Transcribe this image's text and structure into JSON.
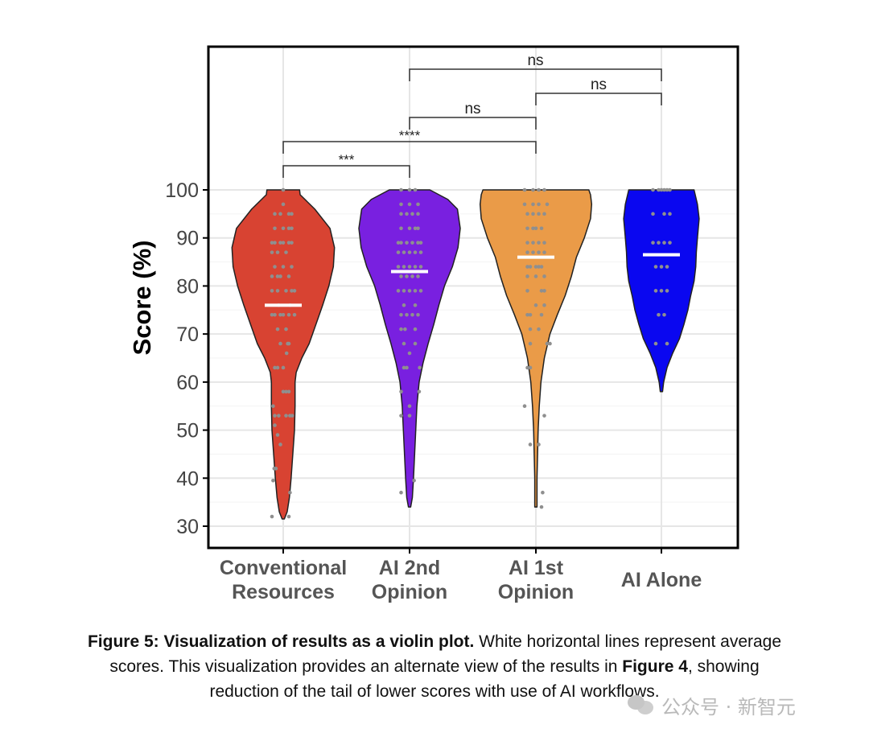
{
  "chart_data": {
    "type": "violin",
    "ylabel": "Score (%)",
    "ylim": [
      25.5,
      100
    ],
    "yticks": [
      30,
      40,
      50,
      60,
      70,
      80,
      90,
      100
    ],
    "grid": true,
    "categories": [
      {
        "line1": "Conventional",
        "line2": "Resources",
        "color": "#d84332"
      },
      {
        "line1": "AI 2nd",
        "line2": "Opinion",
        "color": "#7920e0"
      },
      {
        "line1": "AI 1st",
        "line2": "Opinion",
        "color": "#ea9b48"
      },
      {
        "line1": "AI Alone",
        "line2": "",
        "color": "#0a07f0"
      }
    ],
    "series": [
      {
        "mean": 76,
        "min": 31.5,
        "max": 100,
        "profile": [
          [
            31.5,
            0.02
          ],
          [
            33,
            0.07
          ],
          [
            36,
            0.11
          ],
          [
            40,
            0.14
          ],
          [
            45,
            0.17
          ],
          [
            50,
            0.2
          ],
          [
            55,
            0.21
          ],
          [
            60,
            0.21
          ],
          [
            62,
            0.23
          ],
          [
            65,
            0.33
          ],
          [
            68,
            0.46
          ],
          [
            72,
            0.58
          ],
          [
            76,
            0.7
          ],
          [
            80,
            0.81
          ],
          [
            84,
            0.89
          ],
          [
            88,
            0.91
          ],
          [
            92,
            0.83
          ],
          [
            96,
            0.56
          ],
          [
            99,
            0.3
          ],
          [
            100,
            0.29
          ]
        ],
        "points": [
          [
            32,
            -0.2
          ],
          [
            32,
            0.1
          ],
          [
            37,
            0.12
          ],
          [
            39.5,
            -0.18
          ],
          [
            42,
            -0.16
          ],
          [
            42,
            -0.13
          ],
          [
            47,
            -0.05
          ],
          [
            49,
            -0.1
          ],
          [
            51,
            -0.15
          ],
          [
            53,
            -0.15
          ],
          [
            53,
            -0.08
          ],
          [
            53,
            0.05
          ],
          [
            53,
            0.12
          ],
          [
            53,
            0.16
          ],
          [
            55,
            -0.18
          ],
          [
            58,
            0.0
          ],
          [
            58,
            0.05
          ],
          [
            58,
            0.1
          ],
          [
            63,
            -0.15
          ],
          [
            63,
            -0.1
          ],
          [
            63,
            0.0
          ],
          [
            66,
            0.06
          ],
          [
            68,
            -0.05
          ],
          [
            68,
            0.08
          ],
          [
            68,
            0.1
          ],
          [
            71,
            -0.1
          ],
          [
            71,
            0.05
          ],
          [
            74,
            -0.2
          ],
          [
            74,
            -0.15
          ],
          [
            74,
            -0.05
          ],
          [
            74,
            0.0
          ],
          [
            74,
            0.1
          ],
          [
            74,
            0.2
          ],
          [
            76,
            -0.08
          ],
          [
            76,
            0.12
          ],
          [
            79,
            -0.2
          ],
          [
            79,
            -0.1
          ],
          [
            79,
            0.05
          ],
          [
            79,
            0.15
          ],
          [
            79,
            0.2
          ],
          [
            82,
            -0.2
          ],
          [
            82,
            -0.1
          ],
          [
            82,
            -0.05
          ],
          [
            82,
            0.1
          ],
          [
            84,
            -0.15
          ],
          [
            84,
            0.0
          ],
          [
            84,
            0.15
          ],
          [
            87,
            -0.2
          ],
          [
            87,
            -0.1
          ],
          [
            87,
            0.05
          ],
          [
            89,
            -0.2
          ],
          [
            89,
            -0.15
          ],
          [
            89,
            -0.05
          ],
          [
            89,
            0.0
          ],
          [
            89,
            0.1
          ],
          [
            89,
            0.15
          ],
          [
            92,
            -0.15
          ],
          [
            92,
            0.0
          ],
          [
            92,
            0.1
          ],
          [
            92,
            0.15
          ],
          [
            95,
            -0.15
          ],
          [
            95,
            -0.05
          ],
          [
            95,
            0.1
          ],
          [
            95,
            0.15
          ],
          [
            97,
            0.0
          ],
          [
            100,
            0.0
          ]
        ]
      },
      {
        "mean": 83,
        "min": 34,
        "max": 100,
        "profile": [
          [
            34,
            0.02
          ],
          [
            36,
            0.05
          ],
          [
            40,
            0.07
          ],
          [
            45,
            0.09
          ],
          [
            50,
            0.11
          ],
          [
            55,
            0.13
          ],
          [
            60,
            0.17
          ],
          [
            64,
            0.24
          ],
          [
            68,
            0.33
          ],
          [
            72,
            0.43
          ],
          [
            76,
            0.52
          ],
          [
            80,
            0.62
          ],
          [
            84,
            0.76
          ],
          [
            88,
            0.86
          ],
          [
            92,
            0.9
          ],
          [
            96,
            0.85
          ],
          [
            98,
            0.68
          ],
          [
            100,
            0.36
          ]
        ],
        "points": [
          [
            37,
            -0.15
          ],
          [
            39.5,
            0.08
          ],
          [
            53,
            -0.15
          ],
          [
            53,
            0.0
          ],
          [
            55,
            0.0
          ],
          [
            58,
            -0.15
          ],
          [
            58,
            0.17
          ],
          [
            63,
            -0.1
          ],
          [
            63,
            -0.05
          ],
          [
            63,
            0.18
          ],
          [
            66,
            0.0
          ],
          [
            68,
            -0.1
          ],
          [
            68,
            0.1
          ],
          [
            71,
            -0.15
          ],
          [
            71,
            -0.08
          ],
          [
            71,
            0.1
          ],
          [
            74,
            -0.15
          ],
          [
            74,
            -0.05
          ],
          [
            74,
            0.05
          ],
          [
            74,
            0.15
          ],
          [
            76,
            -0.1
          ],
          [
            76,
            0.1
          ],
          [
            79,
            -0.2
          ],
          [
            79,
            -0.1
          ],
          [
            79,
            0.0
          ],
          [
            79,
            0.1
          ],
          [
            79,
            0.2
          ],
          [
            82,
            -0.15
          ],
          [
            82,
            -0.05
          ],
          [
            82,
            0.05
          ],
          [
            82,
            0.15
          ],
          [
            84,
            -0.2
          ],
          [
            84,
            -0.1
          ],
          [
            84,
            0.0
          ],
          [
            84,
            0.1
          ],
          [
            84,
            0.2
          ],
          [
            87,
            -0.2
          ],
          [
            87,
            -0.1
          ],
          [
            87,
            0.0
          ],
          [
            87,
            0.1
          ],
          [
            87,
            0.2
          ],
          [
            89,
            -0.2
          ],
          [
            89,
            -0.15
          ],
          [
            89,
            -0.05
          ],
          [
            89,
            0.05
          ],
          [
            89,
            0.15
          ],
          [
            89,
            0.2
          ],
          [
            92,
            -0.15
          ],
          [
            92,
            0.0
          ],
          [
            92,
            0.1
          ],
          [
            92,
            0.15
          ],
          [
            95,
            -0.15
          ],
          [
            95,
            -0.05
          ],
          [
            95,
            0.05
          ],
          [
            95,
            0.15
          ],
          [
            97,
            -0.15
          ],
          [
            97,
            0.0
          ],
          [
            97,
            0.15
          ],
          [
            100,
            -0.15
          ],
          [
            100,
            0.0
          ],
          [
            100,
            0.1
          ]
        ]
      },
      {
        "mean": 86,
        "min": 34,
        "max": 100,
        "profile": [
          [
            34,
            0.02
          ],
          [
            36,
            0.02
          ],
          [
            40,
            0.02
          ],
          [
            45,
            0.03
          ],
          [
            50,
            0.04
          ],
          [
            55,
            0.06
          ],
          [
            60,
            0.09
          ],
          [
            65,
            0.15
          ],
          [
            70,
            0.25
          ],
          [
            74,
            0.38
          ],
          [
            78,
            0.52
          ],
          [
            82,
            0.63
          ],
          [
            86,
            0.72
          ],
          [
            90,
            0.86
          ],
          [
            94,
            0.97
          ],
          [
            97,
            0.99
          ],
          [
            99,
            0.97
          ],
          [
            100,
            0.94
          ]
        ],
        "points": [
          [
            34,
            0.1
          ],
          [
            37,
            0.12
          ],
          [
            47,
            -0.1
          ],
          [
            47,
            0.05
          ],
          [
            53,
            0.15
          ],
          [
            55,
            -0.2
          ],
          [
            63,
            -0.15
          ],
          [
            63,
            -0.1
          ],
          [
            68,
            -0.1
          ],
          [
            68,
            0.2
          ],
          [
            68,
            0.25
          ],
          [
            71,
            -0.1
          ],
          [
            71,
            0.05
          ],
          [
            74,
            -0.15
          ],
          [
            74,
            -0.1
          ],
          [
            74,
            0.1
          ],
          [
            76,
            0.0
          ],
          [
            76,
            0.15
          ],
          [
            79,
            -0.15
          ],
          [
            79,
            0.1
          ],
          [
            79,
            0.15
          ],
          [
            82,
            -0.15
          ],
          [
            82,
            0.0
          ],
          [
            82,
            0.15
          ],
          [
            84,
            -0.15
          ],
          [
            84,
            -0.1
          ],
          [
            84,
            0.0
          ],
          [
            84,
            0.05
          ],
          [
            84,
            0.1
          ],
          [
            87,
            -0.15
          ],
          [
            87,
            -0.05
          ],
          [
            87,
            0.05
          ],
          [
            87,
            0.15
          ],
          [
            89,
            -0.15
          ],
          [
            89,
            -0.05
          ],
          [
            89,
            0.05
          ],
          [
            89,
            0.15
          ],
          [
            92,
            -0.15
          ],
          [
            92,
            -0.05
          ],
          [
            92,
            0.0
          ],
          [
            92,
            0.1
          ],
          [
            95,
            -0.15
          ],
          [
            95,
            -0.05
          ],
          [
            95,
            0.05
          ],
          [
            95,
            0.15
          ],
          [
            97,
            -0.2
          ],
          [
            97,
            -0.05
          ],
          [
            97,
            0.05
          ],
          [
            97,
            0.2
          ],
          [
            100,
            -0.2
          ],
          [
            100,
            -0.05
          ],
          [
            100,
            0.05
          ],
          [
            100,
            0.15
          ]
        ]
      },
      {
        "mean": 86.5,
        "min": 58,
        "max": 100,
        "profile": [
          [
            58,
            0.02
          ],
          [
            60,
            0.04
          ],
          [
            63,
            0.1
          ],
          [
            66,
            0.2
          ],
          [
            69,
            0.32
          ],
          [
            72,
            0.4
          ],
          [
            75,
            0.47
          ],
          [
            78,
            0.52
          ],
          [
            81,
            0.58
          ],
          [
            84,
            0.61
          ],
          [
            87,
            0.62
          ],
          [
            90,
            0.64
          ],
          [
            94,
            0.67
          ],
          [
            97,
            0.64
          ],
          [
            100,
            0.58
          ]
        ],
        "points": [
          [
            68,
            -0.1
          ],
          [
            68,
            0.1
          ],
          [
            74,
            -0.05
          ],
          [
            74,
            0.05
          ],
          [
            79,
            -0.1
          ],
          [
            79,
            0.0
          ],
          [
            79,
            0.1
          ],
          [
            84,
            -0.1
          ],
          [
            84,
            0.0
          ],
          [
            84,
            0.1
          ],
          [
            89,
            -0.15
          ],
          [
            89,
            -0.05
          ],
          [
            89,
            0.05
          ],
          [
            89,
            0.15
          ],
          [
            95,
            -0.15
          ],
          [
            95,
            0.05
          ],
          [
            95,
            0.15
          ],
          [
            100,
            -0.15
          ],
          [
            100,
            -0.05
          ],
          [
            100,
            0.0
          ],
          [
            100,
            0.05
          ],
          [
            100,
            0.1
          ],
          [
            100,
            0.15
          ]
        ]
      }
    ],
    "significance": [
      {
        "from": 0,
        "to": 1,
        "label": "***"
      },
      {
        "from": 0,
        "to": 2,
        "label": "****"
      },
      {
        "from": 1,
        "to": 2,
        "label": "ns"
      },
      {
        "from": 2,
        "to": 3,
        "label": "ns"
      },
      {
        "from": 1,
        "to": 3,
        "label": "ns"
      }
    ]
  },
  "caption": {
    "figure_label": "Figure 5: Visualization of results as a violin plot.",
    "part1": " White horizontal lines represent average",
    "part2": "scores. This visualization provides an alternate view of the results in ",
    "figure_ref": "Figure 4",
    "part3": ", showing",
    "part4": "reduction of the tail of lower scores with use of AI workflows."
  },
  "watermark": {
    "text": "公众号 · 新智元"
  }
}
